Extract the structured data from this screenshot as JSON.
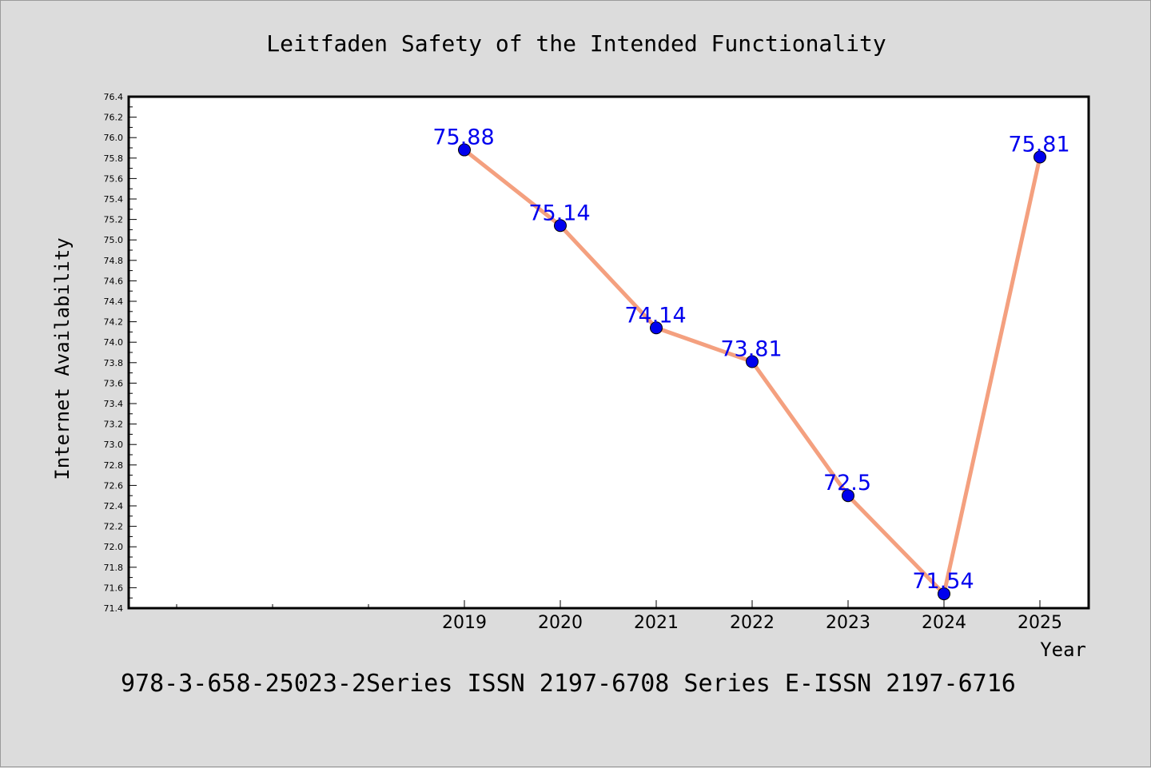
{
  "chart_data": {
    "type": "line",
    "title": "Leitfaden Safety of the Intended Functionality",
    "xlabel": "Year",
    "ylabel": "Internet Availability",
    "footer": "978-3-658-25023-2Series ISSN 2197-6708 Series E-ISSN 2197-6716",
    "categories": [
      "2019",
      "2020",
      "2021",
      "2022",
      "2023",
      "2024",
      "2025"
    ],
    "values": [
      75.88,
      75.14,
      74.14,
      73.81,
      72.5,
      71.54,
      75.81
    ],
    "data_labels": [
      "75.88",
      "75.14",
      "74.14",
      "73.81",
      "72.5",
      "71.54",
      "75.81"
    ],
    "ylim": [
      71.4,
      76.4
    ],
    "yticks": [
      "71.4",
      "71.6",
      "71.8",
      "72.0",
      "72.2",
      "72.4",
      "72.6",
      "72.8",
      "73.0",
      "73.2",
      "73.4",
      "73.6",
      "73.8",
      "74.0",
      "74.2",
      "74.4",
      "74.6",
      "74.8",
      "75.0",
      "75.2",
      "75.4",
      "75.6",
      "75.8",
      "76.0",
      "76.2",
      "76.4"
    ],
    "grid": false,
    "legend": "none",
    "colors": {
      "line": "#f4a07f",
      "marker": "#0000ee",
      "label": "#0000ee",
      "plot_background": "#ffffff",
      "page_background": "#dcdcdc"
    }
  }
}
